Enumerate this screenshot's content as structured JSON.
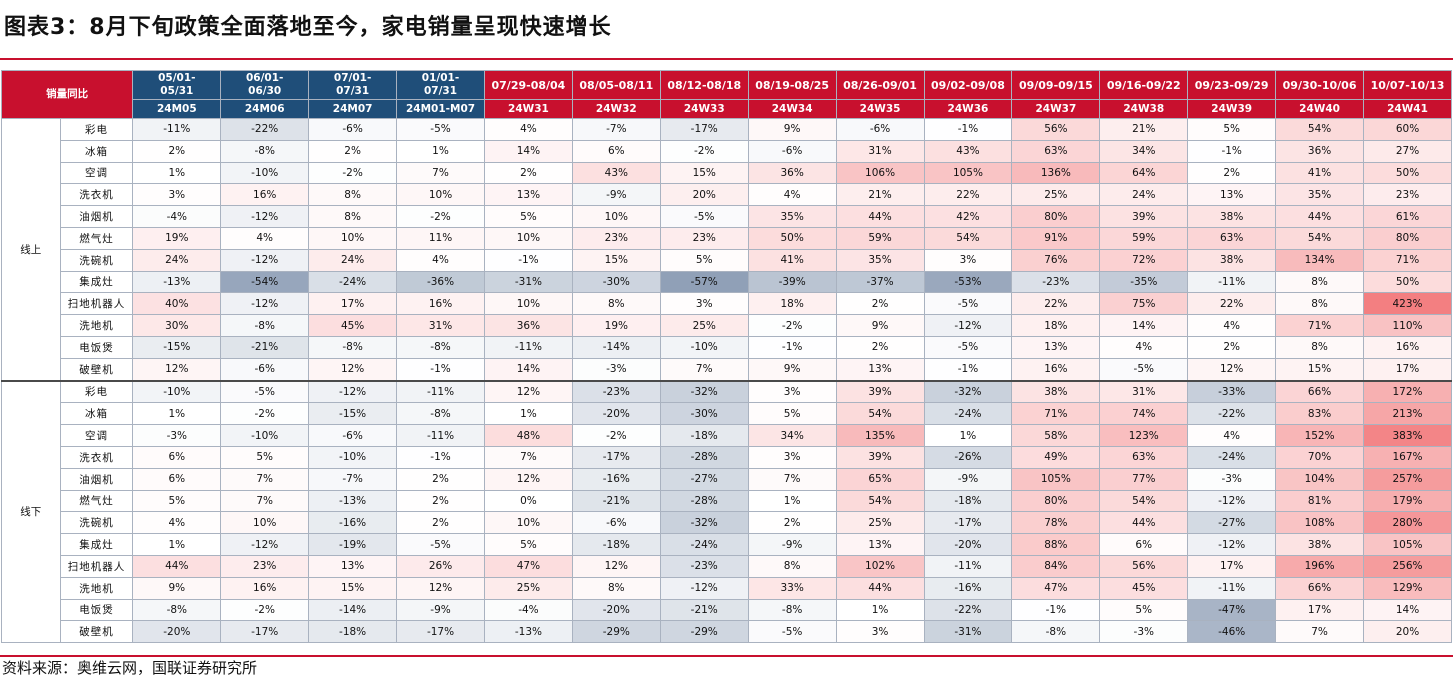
{
  "title": "图表3：8月下旬政策全面落地至今，家电销量呈现快速增长",
  "source": "资料来源：奥维云网，国联证券研究所",
  "chart_data": {
    "type": "table",
    "corner_label": "销量同比",
    "unit": "%",
    "colors": {
      "header_red": "#c8102e",
      "header_blue": "#1f4e79",
      "positive": "#f2787a",
      "negative": "#8a9bb3",
      "neutral": "#ffffff"
    },
    "columns": [
      {
        "range": "05/01-05/31",
        "week": "24M05",
        "style": "blue"
      },
      {
        "range": "06/01-06/30",
        "week": "24M06",
        "style": "blue"
      },
      {
        "range": "07/01-07/31",
        "week": "24M07",
        "style": "blue"
      },
      {
        "range": "01/01-07/31",
        "week": "24M01-M07",
        "style": "blue"
      },
      {
        "range": "07/29-08/04",
        "week": "24W31",
        "style": "red"
      },
      {
        "range": "08/05-08/11",
        "week": "24W32",
        "style": "red"
      },
      {
        "range": "08/12-08/18",
        "week": "24W33",
        "style": "red"
      },
      {
        "range": "08/19-08/25",
        "week": "24W34",
        "style": "red"
      },
      {
        "range": "08/26-09/01",
        "week": "24W35",
        "style": "red"
      },
      {
        "range": "09/02-09/08",
        "week": "24W36",
        "style": "red"
      },
      {
        "range": "09/09-09/15",
        "week": "24W37",
        "style": "red"
      },
      {
        "range": "09/16-09/22",
        "week": "24W38",
        "style": "red"
      },
      {
        "range": "09/23-09/29",
        "week": "24W39",
        "style": "red"
      },
      {
        "range": "09/30-10/06",
        "week": "24W40",
        "style": "red"
      },
      {
        "range": "10/07-10/13",
        "week": "24W41",
        "style": "red"
      }
    ],
    "segments": [
      {
        "name": "线上",
        "rows": [
          {
            "product": "彩电",
            "values": [
              -11,
              -22,
              -6,
              -5,
              4,
              -7,
              -17,
              9,
              -6,
              -1,
              56,
              21,
              5,
              54,
              60
            ]
          },
          {
            "product": "冰箱",
            "values": [
              2,
              -8,
              2,
              1,
              14,
              6,
              -2,
              -6,
              31,
              43,
              63,
              34,
              -1,
              36,
              27
            ]
          },
          {
            "product": "空调",
            "values": [
              1,
              -10,
              -2,
              7,
              2,
              43,
              15,
              36,
              106,
              105,
              136,
              64,
              2,
              41,
              50
            ]
          },
          {
            "product": "洗衣机",
            "values": [
              3,
              16,
              8,
              10,
              13,
              -9,
              20,
              4,
              21,
              22,
              25,
              24,
              13,
              35,
              23
            ]
          },
          {
            "product": "油烟机",
            "values": [
              -4,
              -12,
              8,
              -2,
              5,
              10,
              -5,
              35,
              44,
              42,
              80,
              39,
              38,
              44,
              61
            ]
          },
          {
            "product": "燃气灶",
            "values": [
              19,
              4,
              10,
              11,
              10,
              23,
              23,
              50,
              59,
              54,
              91,
              59,
              63,
              54,
              80
            ]
          },
          {
            "product": "洗碗机",
            "values": [
              24,
              -12,
              24,
              4,
              -1,
              15,
              5,
              41,
              35,
              3,
              76,
              72,
              38,
              134,
              71
            ]
          },
          {
            "product": "集成灶",
            "values": [
              -13,
              -54,
              -24,
              -36,
              -31,
              -30,
              -57,
              -39,
              -37,
              -53,
              -23,
              -35,
              -11,
              8,
              50
            ]
          },
          {
            "product": "扫地机器人",
            "values": [
              40,
              -12,
              17,
              16,
              10,
              8,
              3,
              18,
              2,
              -5,
              22,
              75,
              22,
              8,
              423
            ]
          },
          {
            "product": "洗地机",
            "values": [
              30,
              -8,
              45,
              31,
              36,
              19,
              25,
              -2,
              9,
              -12,
              18,
              14,
              4,
              71,
              110
            ]
          },
          {
            "product": "电饭煲",
            "values": [
              -15,
              -21,
              -8,
              -8,
              -11,
              -14,
              -10,
              -1,
              2,
              -5,
              13,
              4,
              2,
              8,
              16
            ]
          },
          {
            "product": "破壁机",
            "values": [
              12,
              -6,
              12,
              -1,
              14,
              -3,
              7,
              9,
              13,
              -1,
              16,
              -5,
              12,
              15,
              17
            ]
          }
        ]
      },
      {
        "name": "线下",
        "rows": [
          {
            "product": "彩电",
            "values": [
              -10,
              -5,
              -12,
              -11,
              12,
              -23,
              -32,
              3,
              39,
              -32,
              38,
              31,
              -33,
              66,
              172
            ]
          },
          {
            "product": "冰箱",
            "values": [
              1,
              -2,
              -15,
              -8,
              1,
              -20,
              -30,
              5,
              54,
              -24,
              71,
              74,
              -22,
              83,
              213
            ]
          },
          {
            "product": "空调",
            "values": [
              -3,
              -10,
              -6,
              -11,
              48,
              -2,
              -18,
              34,
              135,
              1,
              58,
              123,
              4,
              152,
              383
            ]
          },
          {
            "product": "洗衣机",
            "values": [
              6,
              5,
              -10,
              -1,
              7,
              -17,
              -28,
              3,
              39,
              -26,
              49,
              63,
              -24,
              70,
              167
            ]
          },
          {
            "product": "油烟机",
            "values": [
              6,
              7,
              -7,
              2,
              12,
              -16,
              -27,
              7,
              65,
              -9,
              105,
              77,
              -3,
              104,
              257
            ]
          },
          {
            "product": "燃气灶",
            "values": [
              5,
              7,
              -13,
              2,
              0,
              -21,
              -28,
              1,
              54,
              -18,
              80,
              54,
              -12,
              81,
              179
            ]
          },
          {
            "product": "洗碗机",
            "values": [
              4,
              10,
              -16,
              2,
              10,
              -6,
              -32,
              2,
              25,
              -17,
              78,
              44,
              -27,
              108,
              280
            ]
          },
          {
            "product": "集成灶",
            "values": [
              1,
              -12,
              -19,
              -5,
              5,
              -18,
              -24,
              -9,
              13,
              -20,
              88,
              6,
              -12,
              38,
              105
            ]
          },
          {
            "product": "扫地机器人",
            "values": [
              44,
              23,
              13,
              26,
              47,
              12,
              -23,
              8,
              102,
              -11,
              84,
              56,
              17,
              196,
              256
            ]
          },
          {
            "product": "洗地机",
            "values": [
              9,
              16,
              15,
              12,
              25,
              8,
              -12,
              33,
              44,
              -16,
              47,
              45,
              -11,
              66,
              129
            ]
          },
          {
            "product": "电饭煲",
            "values": [
              -8,
              -2,
              -14,
              -9,
              -4,
              -20,
              -21,
              -8,
              1,
              -22,
              -1,
              5,
              -47,
              17,
              14
            ]
          },
          {
            "product": "破壁机",
            "values": [
              -20,
              -17,
              -18,
              -17,
              -13,
              -29,
              -29,
              -5,
              3,
              -31,
              -8,
              -3,
              -46,
              7,
              20
            ]
          }
        ]
      }
    ]
  }
}
